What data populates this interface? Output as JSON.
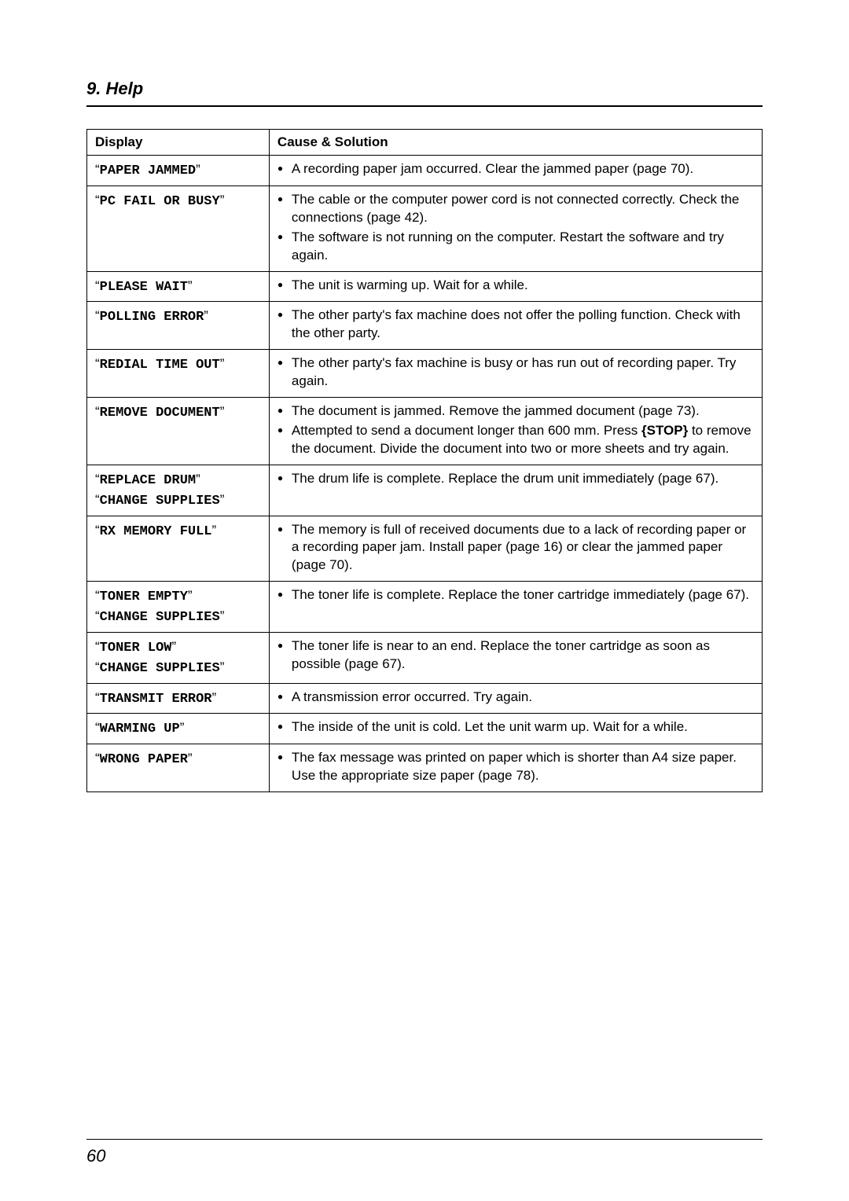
{
  "chapter": {
    "heading": "9. Help"
  },
  "table": {
    "columns": {
      "display": "Display",
      "cause": "Cause & Solution"
    },
    "rows": [
      {
        "display": [
          "PAPER JAMMED"
        ],
        "cause": [
          "A recording paper jam occurred. Clear the jammed paper (page 70)."
        ]
      },
      {
        "display": [
          "PC FAIL OR BUSY"
        ],
        "cause": [
          "The cable or the computer power cord is not connected correctly. Check the connections (page 42).",
          "The software is not running on the computer. Restart the software and try again."
        ]
      },
      {
        "display": [
          "PLEASE WAIT"
        ],
        "cause": [
          "The unit is warming up. Wait for a while."
        ]
      },
      {
        "display": [
          "POLLING ERROR"
        ],
        "cause": [
          "The other party's fax machine does not offer the polling function. Check with the other party."
        ]
      },
      {
        "display": [
          "REDIAL TIME OUT"
        ],
        "cause": [
          "The other party's fax machine is busy or has run out of recording paper. Try again."
        ]
      },
      {
        "display": [
          "REMOVE DOCUMENT"
        ],
        "cause": [
          "The document is jammed. Remove the jammed document (page 73).",
          "Attempted to send a document longer than 600 mm. Press {STOP} to remove the document. Divide the document into two or more sheets and try again."
        ]
      },
      {
        "display": [
          "REPLACE DRUM",
          "CHANGE SUPPLIES"
        ],
        "cause": [
          "The drum life is complete. Replace the drum unit immediately (page 67)."
        ]
      },
      {
        "display": [
          "RX MEMORY FULL"
        ],
        "cause": [
          "The memory is full of received documents due to a lack of recording paper or a recording paper jam. Install paper (page 16) or clear the jammed paper (page 70)."
        ]
      },
      {
        "display": [
          "TONER EMPTY",
          "CHANGE SUPPLIES"
        ],
        "cause": [
          "The toner life is complete. Replace the toner cartridge immediately (page 67)."
        ]
      },
      {
        "display": [
          "TONER LOW",
          "CHANGE SUPPLIES"
        ],
        "cause": [
          "The toner life is near to an end. Replace the toner cartridge as soon as possible (page 67)."
        ]
      },
      {
        "display": [
          "TRANSMIT ERROR"
        ],
        "cause": [
          "A transmission error occurred. Try again."
        ]
      },
      {
        "display": [
          "WARMING UP"
        ],
        "cause": [
          "The inside of the unit is cold. Let the unit warm up. Wait for a while."
        ]
      },
      {
        "display": [
          "WRONG PAPER"
        ],
        "cause": [
          "The fax message was printed on paper which is shorter than A4 size paper. Use the appropriate size paper (page 78)."
        ]
      }
    ]
  },
  "pageNumber": "60"
}
